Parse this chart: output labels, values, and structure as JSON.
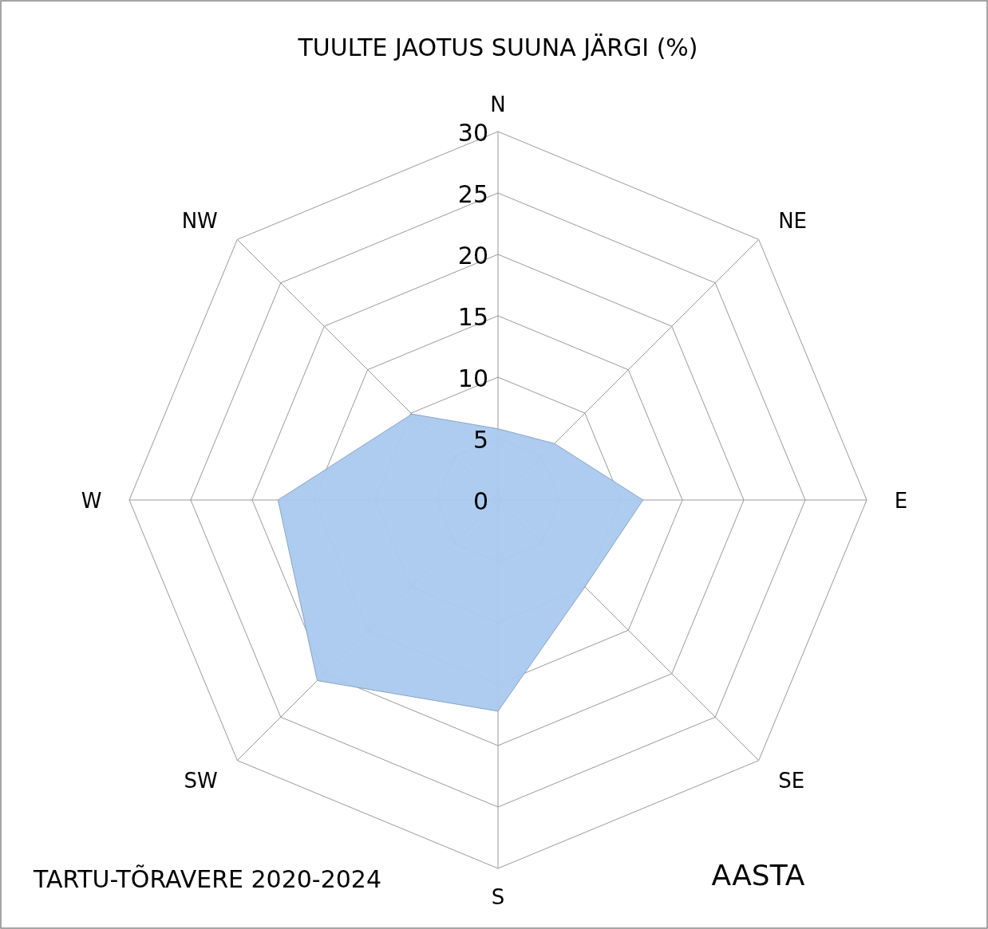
{
  "chart_data": {
    "type": "radar",
    "title": "TUULTE JAOTUS SUUNA JÄRGI (%)",
    "categories": [
      "N",
      "NE",
      "E",
      "SE",
      "S",
      "SW",
      "W",
      "NW"
    ],
    "series": [
      {
        "color": "#a9c9ee",
        "values": [
          5.8,
          6.5,
          11.8,
          10,
          17.2,
          20.8,
          17.9,
          9.9
        ]
      }
    ],
    "ylim": [
      0,
      30
    ],
    "yticks": [
      0,
      5,
      10,
      15,
      20,
      25,
      30
    ],
    "grid": true,
    "annotations": [
      "TARTU-TÕRAVERE 2020-2024",
      "AASTA"
    ]
  }
}
